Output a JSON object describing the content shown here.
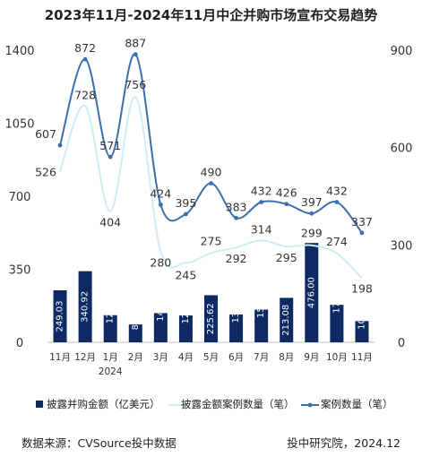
{
  "title": "2023年11月-2024年11月中企并购市场宣布交易趋势",
  "footer": {
    "source": "数据来源：CVSource投中数据",
    "credit": "投中研究院，2024.12"
  },
  "colors": {
    "bar": "#0d2a63",
    "amount_case_line": "#cdeef6",
    "case_line": "#3c6fb0"
  },
  "chart_data": {
    "type": "bar",
    "categories": [
      "11月",
      "12月",
      "1月",
      "2月",
      "3月",
      "4月",
      "5月",
      "6月",
      "7月",
      "8月",
      "9月",
      "10月",
      "11月"
    ],
    "year_label": "2024",
    "y_left_ticks": [
      "0",
      "350",
      "700",
      "1050",
      "1400"
    ],
    "y_right_ticks": [
      "0",
      "300",
      "600",
      "900"
    ],
    "ylim_left": [
      0,
      1400
    ],
    "ylim_right": [
      0,
      900
    ],
    "legend_position": "bottom",
    "series": [
      {
        "name": "披露并购金额（亿美元）",
        "type": "bar",
        "axis": "left",
        "values": [
          249.03,
          340.92,
          129.99,
          85.51,
          140.07,
          128.79,
          225.62,
          133.21,
          156.8,
          213.08,
          476.0,
          179.6,
          101.75
        ],
        "labels": [
          "249.03",
          "340.92",
          "129.99",
          "85.51",
          "140.07",
          "128.79",
          "225.62",
          "133.21",
          "156.80",
          "213.08",
          "476.00",
          "179.60",
          "101.75"
        ]
      },
      {
        "name": "披露金额案例数量（笔）",
        "type": "line",
        "axis": "right",
        "values": [
          526,
          728,
          404,
          756,
          280,
          245,
          275,
          292,
          314,
          295,
          299,
          274,
          198
        ],
        "labels": [
          "526",
          "728",
          "404",
          "756",
          "280",
          "245",
          "275",
          "292",
          "314",
          "295",
          "299",
          "274",
          "198"
        ]
      },
      {
        "name": "案例数量（笔）",
        "type": "line",
        "axis": "right",
        "values": [
          607,
          872,
          571,
          887,
          424,
          395,
          490,
          383,
          432,
          426,
          397,
          432,
          337
        ],
        "labels": [
          "607",
          "872",
          "571",
          "887",
          "424",
          "395",
          "490",
          "383",
          "432",
          "426",
          "397",
          "432",
          "337"
        ]
      }
    ]
  }
}
